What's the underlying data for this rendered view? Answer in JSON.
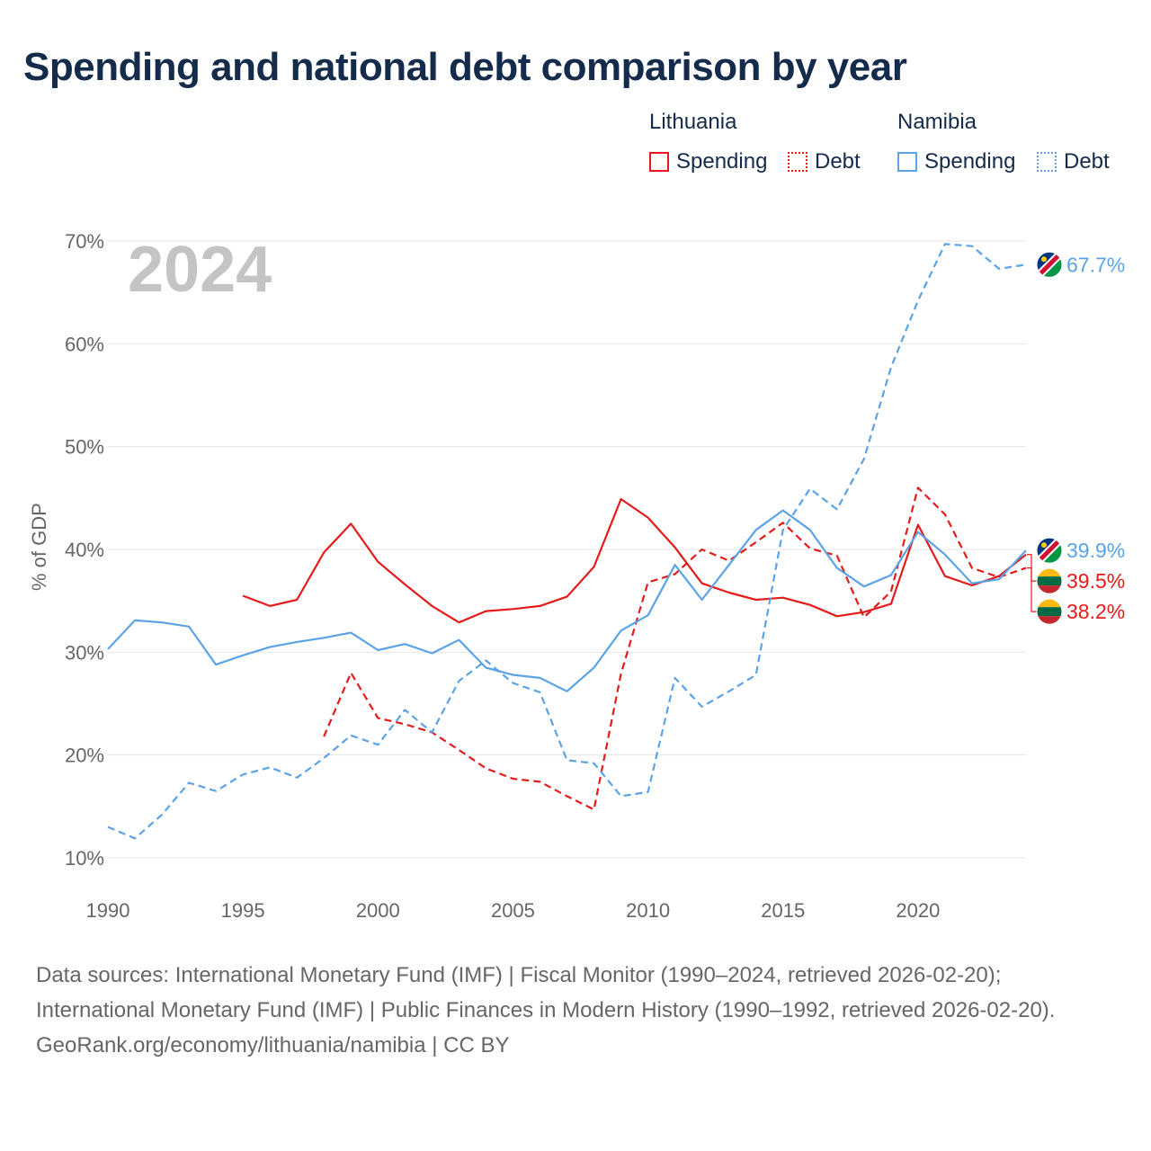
{
  "title": "Spending and national debt comparison by year",
  "legend": {
    "groups": [
      {
        "name": "Lithuania",
        "color": "#e31b1b",
        "items": [
          {
            "label": "Spending",
            "style": "solid"
          },
          {
            "label": "Debt",
            "style": "dotted"
          }
        ]
      },
      {
        "name": "Namibia",
        "color": "#5ba3e6",
        "items": [
          {
            "label": "Spending",
            "style": "solid"
          },
          {
            "label": "Debt",
            "style": "dotted"
          }
        ]
      }
    ]
  },
  "footer": {
    "sources": "Data sources: International Monetary Fund (IMF) | Fiscal Monitor (1990–2024, retrieved 2026-02-20); International Monetary Fund (IMF) | Public Finances in Modern History (1990–1992, retrieved 2026-02-20).",
    "credit": "GeoRank.org/economy/lithuania/namibia | CC BY"
  },
  "chart_data": {
    "type": "line",
    "year_label": "2024",
    "ylabel": "% of GDP",
    "xlim": [
      1990,
      2024
    ],
    "ylim": [
      10,
      70
    ],
    "x_ticks": [
      1990,
      1995,
      2000,
      2005,
      2010,
      2015,
      2020
    ],
    "y_ticks": [
      10,
      20,
      30,
      40,
      50,
      60,
      70
    ],
    "y_tick_labels": [
      "10%",
      "20%",
      "30%",
      "40%",
      "50%",
      "60%",
      "70%"
    ],
    "series": [
      {
        "name": "Lithuania Spending",
        "country": "Lithuania",
        "color": "#e31b1b",
        "dash": "solid",
        "x": [
          1995,
          1996,
          1997,
          1998,
          1999,
          2000,
          2001,
          2002,
          2003,
          2004,
          2005,
          2006,
          2007,
          2008,
          2009,
          2010,
          2011,
          2012,
          2013,
          2014,
          2015,
          2016,
          2017,
          2018,
          2019,
          2020,
          2021,
          2022,
          2023,
          2024
        ],
        "values": [
          35.5,
          34.5,
          35.1,
          39.7,
          42.5,
          38.8,
          36.6,
          34.5,
          32.9,
          34.0,
          34.2,
          34.5,
          35.4,
          38.3,
          44.9,
          43.1,
          40.2,
          36.7,
          35.8,
          35.1,
          35.3,
          34.6,
          33.5,
          33.9,
          34.7,
          42.4,
          37.4,
          36.5,
          37.4,
          39.5
        ],
        "end_label": "39.5%"
      },
      {
        "name": "Lithuania Debt",
        "country": "Lithuania",
        "color": "#e31b1b",
        "dash": "dashed",
        "x": [
          1998,
          1999,
          2000,
          2001,
          2002,
          2003,
          2004,
          2005,
          2006,
          2007,
          2008,
          2009,
          2010,
          2011,
          2012,
          2013,
          2014,
          2015,
          2016,
          2017,
          2018,
          2019,
          2020,
          2021,
          2022,
          2023,
          2024
        ],
        "values": [
          21.8,
          28.0,
          23.6,
          23.0,
          22.2,
          20.5,
          18.7,
          17.7,
          17.4,
          16.0,
          14.7,
          27.9,
          36.8,
          37.6,
          40.0,
          38.9,
          40.7,
          42.6,
          40.1,
          39.4,
          33.4,
          35.9,
          46.0,
          43.4,
          38.2,
          37.3,
          38.2
        ],
        "end_label": "38.2%"
      },
      {
        "name": "Namibia Spending",
        "country": "Namibia",
        "color": "#5ba3e6",
        "dash": "solid",
        "x": [
          1990,
          1991,
          1992,
          1993,
          1994,
          1995,
          1996,
          1997,
          1998,
          1999,
          2000,
          2001,
          2002,
          2003,
          2004,
          2005,
          2006,
          2007,
          2008,
          2009,
          2010,
          2011,
          2012,
          2013,
          2014,
          2015,
          2016,
          2017,
          2018,
          2019,
          2020,
          2021,
          2022,
          2023,
          2024
        ],
        "values": [
          30.3,
          33.1,
          32.9,
          32.5,
          28.8,
          29.7,
          30.5,
          31.0,
          31.4,
          31.9,
          30.2,
          30.8,
          29.9,
          31.2,
          28.5,
          27.8,
          27.5,
          26.2,
          28.5,
          32.1,
          33.6,
          38.5,
          35.1,
          38.5,
          41.9,
          43.8,
          41.9,
          38.2,
          36.4,
          37.5,
          41.7,
          39.5,
          36.7,
          37.1,
          39.9
        ],
        "end_label": "39.9%"
      },
      {
        "name": "Namibia Debt",
        "country": "Namibia",
        "color": "#5ba3e6",
        "dash": "dashed",
        "x": [
          1990,
          1991,
          1992,
          1993,
          1994,
          1995,
          1996,
          1997,
          1998,
          1999,
          2000,
          2001,
          2002,
          2003,
          2004,
          2005,
          2006,
          2007,
          2008,
          2009,
          2010,
          2011,
          2012,
          2013,
          2014,
          2015,
          2016,
          2017,
          2018,
          2019,
          2020,
          2021,
          2022,
          2023,
          2024
        ],
        "values": [
          13.0,
          11.9,
          14.2,
          17.3,
          16.5,
          18.1,
          18.8,
          17.8,
          19.7,
          21.9,
          21.0,
          24.4,
          22.2,
          27.2,
          29.2,
          27.0,
          26.1,
          19.5,
          19.2,
          16.0,
          16.4,
          27.5,
          24.7,
          26.2,
          27.8,
          41.9,
          45.9,
          43.9,
          48.8,
          57.7,
          64.2,
          69.7,
          69.5,
          67.3,
          67.7
        ],
        "end_label": "67.7%"
      }
    ]
  }
}
